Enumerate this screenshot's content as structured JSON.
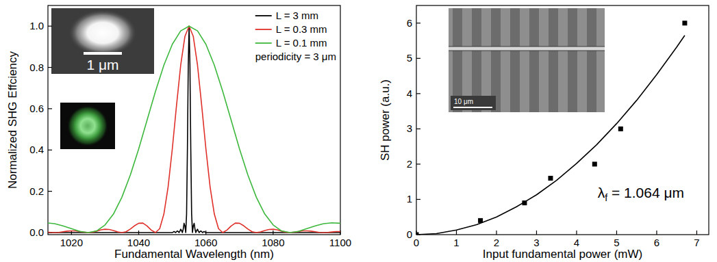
{
  "chart_data": [
    {
      "type": "line",
      "x_label": "Fundamental Wavelength (nm)",
      "y_label": "Normalized SHG Effciency",
      "xlim": [
        1013,
        1100
      ],
      "xticks": [
        1020,
        1040,
        1060,
        1080,
        1100
      ],
      "ylim": [
        -0.01,
        1.1
      ],
      "yticks": [
        {
          "value": 0,
          "label": "0.0"
        },
        {
          "value": 0.2,
          "label": "0.2"
        },
        {
          "value": 0.4,
          "label": "0.4"
        },
        {
          "value": 0.6,
          "label": "0.6"
        },
        {
          "value": 0.8,
          "label": "0.8"
        },
        {
          "value": 1.0,
          "label": "1.0"
        }
      ],
      "legend": "top-right",
      "annotations": [
        {
          "text": "periodicity = 3 μm"
        }
      ],
      "inset_labels": [
        "1 μm"
      ],
      "series": [
        {
          "name": "L = 3 mm",
          "color": "#000000",
          "line_style": "solid",
          "x": [
            1010,
            1050,
            1050.25,
            1050.5,
            1050.75,
            1051,
            1051.25,
            1051.5,
            1051.75,
            1052,
            1052.25,
            1052.5,
            1052.75,
            1053,
            1053.25,
            1053.5,
            1053.75,
            1054,
            1054.25,
            1054.5,
            1054.75,
            1055,
            1055.25,
            1055.5,
            1055.75,
            1056,
            1056.25,
            1056.5,
            1056.75,
            1057,
            1057.25,
            1057.5,
            1057.75,
            1058,
            1058.25,
            1058.5,
            1058.75,
            1059,
            1059.25,
            1059.5,
            1059.75,
            1060,
            1100
          ],
          "values": [
            0,
            0,
            0.002,
            0.005,
            0.003,
            0,
            0.004,
            0.008,
            0.005,
            0,
            0.007,
            0.016,
            0.01,
            0,
            0.017,
            0.045,
            0.032,
            0,
            0.09,
            0.405,
            0.811,
            1,
            0.811,
            0.405,
            0.09,
            0,
            0.032,
            0.045,
            0.017,
            0,
            0.01,
            0.016,
            0.007,
            0,
            0.005,
            0.008,
            0.004,
            0,
            0.003,
            0.005,
            0.002,
            0,
            0
          ]
        },
        {
          "name": "L = 0.3 mm",
          "color": "#e0302a",
          "line_style": "solid",
          "x": [
            1010,
            1011.25,
            1012.5,
            1013.75,
            1015,
            1016.25,
            1017.5,
            1018.75,
            1020,
            1021.25,
            1022.5,
            1023.75,
            1025,
            1026.25,
            1027.5,
            1028.75,
            1030,
            1031.25,
            1032.5,
            1033.75,
            1035,
            1036.25,
            1037.5,
            1038.75,
            1040,
            1041.25,
            1042.5,
            1043.75,
            1045,
            1046.25,
            1047.5,
            1048.75,
            1050,
            1051.25,
            1052.5,
            1053.75,
            1055,
            1056.25,
            1057.5,
            1058.75,
            1060,
            1061.25,
            1062.5,
            1063.75,
            1065,
            1066.25,
            1067.5,
            1068.75,
            1070,
            1071.25,
            1072.5,
            1073.75,
            1075,
            1076.25,
            1077.5,
            1078.75,
            1080,
            1081.25,
            1082.5,
            1083.75,
            1085,
            1086.25,
            1087.5,
            1088.75,
            1090,
            1091.25,
            1092.5,
            1093.75,
            1095,
            1096.25,
            1097.5,
            1098.75,
            1100
          ],
          "values": [
            0.005,
            0.005,
            0.003,
            0.001,
            0,
            0.001,
            0.004,
            0.007,
            0.008,
            0.008,
            0.005,
            0.002,
            0,
            0.002,
            0.007,
            0.013,
            0.016,
            0.015,
            0.01,
            0.003,
            0,
            0.004,
            0.017,
            0.033,
            0.045,
            0.046,
            0.032,
            0.012,
            0,
            0.019,
            0.09,
            0.221,
            0.405,
            0.615,
            0.811,
            0.95,
            1,
            0.95,
            0.811,
            0.615,
            0.405,
            0.221,
            0.09,
            0.019,
            0,
            0.012,
            0.032,
            0.046,
            0.045,
            0.033,
            0.017,
            0.004,
            0,
            0.003,
            0.01,
            0.015,
            0.016,
            0.013,
            0.007,
            0.002,
            0,
            0.002,
            0.005,
            0.008,
            0.008,
            0.007,
            0.004,
            0.001,
            0,
            0.001,
            0.003,
            0.005,
            0.005
          ]
        },
        {
          "name": "L = 0.1 mm",
          "color": "#3db83d",
          "line_style": "solid",
          "x": [
            1010,
            1012.5,
            1015,
            1017.5,
            1020,
            1022.5,
            1025,
            1027.5,
            1030,
            1032.5,
            1035,
            1037.5,
            1040,
            1042.5,
            1045,
            1047.5,
            1050,
            1052.5,
            1055,
            1057.5,
            1060,
            1062.5,
            1065,
            1067.5,
            1070,
            1072.5,
            1075,
            1077.5,
            1080,
            1082.5,
            1085,
            1087.5,
            1090,
            1092.5,
            1095,
            1097.5,
            1100
          ],
          "values": [
            0.045,
            0.047,
            0.043,
            0.032,
            0.019,
            0.006,
            0,
            0.008,
            0.037,
            0.09,
            0.171,
            0.278,
            0.405,
            0.545,
            0.684,
            0.811,
            0.912,
            0.977,
            1,
            0.977,
            0.912,
            0.811,
            0.684,
            0.545,
            0.405,
            0.278,
            0.171,
            0.09,
            0.037,
            0.008,
            0,
            0.006,
            0.019,
            0.032,
            0.043,
            0.047,
            0.045
          ]
        }
      ]
    },
    {
      "type": "scatter",
      "x_label": "Input fundamental power (mW)",
      "y_label": "SH power (a.u.)",
      "xlim": [
        0,
        7.3
      ],
      "xticks": [
        0,
        1,
        2,
        3,
        4,
        5,
        6,
        7
      ],
      "ylim": [
        0,
        6.5
      ],
      "yticks": [
        0,
        1,
        2,
        3,
        4,
        5,
        6
      ],
      "annotations": [
        {
          "symbol": "λ",
          "subscript": "f",
          "text": " = 1.064 μm"
        }
      ],
      "inset_labels": [
        "10 μm"
      ],
      "series": [
        {
          "type": "scatter",
          "color": "#000000",
          "marker": "square",
          "x": [
            0,
            1.6,
            2.7,
            3.35,
            4.45,
            5.1,
            6.7
          ],
          "values": [
            0,
            0.4,
            0.9,
            1.6,
            2.0,
            3.0,
            6.0
          ]
        },
        {
          "type": "line",
          "color": "#000000",
          "line_style": "solid",
          "x": [
            0,
            0.5,
            1,
            1.5,
            2,
            2.5,
            3,
            3.5,
            4,
            4.5,
            5,
            5.5,
            6,
            6.5,
            6.7
          ],
          "values": [
            0,
            0.03,
            0.13,
            0.28,
            0.5,
            0.79,
            1.13,
            1.54,
            2.02,
            2.55,
            3.15,
            3.81,
            4.54,
            5.32,
            5.65
          ]
        }
      ]
    }
  ]
}
